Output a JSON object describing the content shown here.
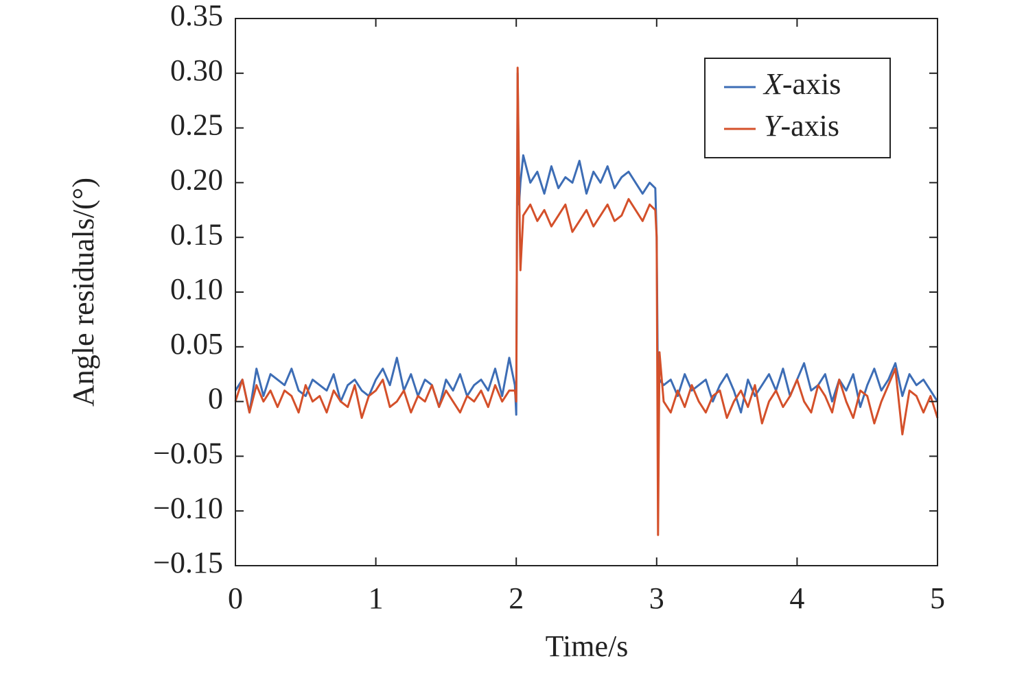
{
  "chart_data": {
    "type": "line",
    "x_label": "Time/s",
    "y_label": "Angle residuals/(°)",
    "xlim": [
      0,
      5
    ],
    "ylim": [
      -0.15,
      0.35
    ],
    "xticks": [
      0,
      1,
      2,
      3,
      4,
      5
    ],
    "yticks": [
      {
        "value": -0.15,
        "label": "−0.15"
      },
      {
        "value": -0.1,
        "label": "−0.10"
      },
      {
        "value": -0.05,
        "label": "−0.05"
      },
      0,
      {
        "value": 0.05,
        "label": "0.05"
      },
      {
        "value": 0.1,
        "label": "0.10"
      },
      {
        "value": 0.15,
        "label": "0.15"
      },
      {
        "value": 0.2,
        "label": "0.20"
      },
      {
        "value": 0.25,
        "label": "0.25"
      },
      {
        "value": 0.3,
        "label": "0.30"
      },
      {
        "value": 0.35,
        "label": "0.35"
      }
    ],
    "legend": "upper right",
    "x": [
      0,
      0.05,
      0.1,
      0.15,
      0.2,
      0.25,
      0.3,
      0.35,
      0.4,
      0.45,
      0.5,
      0.55,
      0.6,
      0.65,
      0.7,
      0.75,
      0.8,
      0.85,
      0.9,
      0.95,
      1,
      1.05,
      1.1,
      1.15,
      1.2,
      1.25,
      1.3,
      1.35,
      1.4,
      1.45,
      1.5,
      1.55,
      1.6,
      1.65,
      1.7,
      1.75,
      1.8,
      1.85,
      1.9,
      1.95,
      1.99,
      2,
      2.01,
      2.02,
      2.03,
      2.05,
      2.1,
      2.15,
      2.2,
      2.25,
      2.3,
      2.35,
      2.4,
      2.45,
      2.5,
      2.55,
      2.6,
      2.65,
      2.7,
      2.75,
      2.8,
      2.85,
      2.9,
      2.95,
      2.99,
      3,
      3.01,
      3.02,
      3.05,
      3.1,
      3.15,
      3.2,
      3.25,
      3.3,
      3.35,
      3.4,
      3.45,
      3.5,
      3.55,
      3.6,
      3.65,
      3.7,
      3.75,
      3.8,
      3.85,
      3.9,
      3.95,
      4,
      4.05,
      4.1,
      4.15,
      4.2,
      4.25,
      4.3,
      4.35,
      4.4,
      4.45,
      4.5,
      4.55,
      4.6,
      4.65,
      4.7,
      4.75,
      4.8,
      4.85,
      4.9,
      4.95,
      5
    ],
    "series": [
      {
        "name": "X-axis",
        "color": "#3d6db5",
        "values": [
          0.01,
          0.02,
          -0.01,
          0.03,
          0.005,
          0.025,
          0.02,
          0.015,
          0.03,
          0.01,
          0.005,
          0.02,
          0.015,
          0.01,
          0.025,
          0.0,
          0.015,
          0.02,
          0.01,
          0.005,
          0.02,
          0.03,
          0.015,
          0.04,
          0.01,
          0.025,
          0.005,
          0.02,
          0.015,
          -0.005,
          0.02,
          0.01,
          0.025,
          0.005,
          0.015,
          0.02,
          0.01,
          0.03,
          0.005,
          0.04,
          0.015,
          -0.012,
          0.3,
          0.18,
          0.2,
          0.225,
          0.2,
          0.21,
          0.19,
          0.215,
          0.195,
          0.205,
          0.2,
          0.22,
          0.19,
          0.21,
          0.2,
          0.215,
          0.195,
          0.205,
          0.21,
          0.2,
          0.19,
          0.2,
          0.195,
          0.15,
          0.0,
          0.02,
          0.015,
          0.02,
          0.005,
          0.025,
          0.01,
          0.015,
          0.02,
          0.0,
          0.015,
          0.025,
          0.01,
          -0.01,
          0.02,
          0.005,
          0.015,
          0.025,
          0.01,
          0.03,
          0.005,
          0.02,
          0.035,
          0.01,
          0.015,
          0.025,
          0.0,
          0.02,
          0.01,
          0.025,
          -0.005,
          0.015,
          0.03,
          0.01,
          0.02,
          0.035,
          0.005,
          0.025,
          0.015,
          0.02,
          0.01,
          0.0
        ]
      },
      {
        "name": "Y-axis",
        "color": "#d4502a",
        "values": [
          0.0,
          0.02,
          -0.01,
          0.015,
          0.0,
          0.01,
          -0.005,
          0.01,
          0.005,
          -0.01,
          0.015,
          0.0,
          0.005,
          -0.01,
          0.01,
          0.0,
          -0.005,
          0.015,
          -0.015,
          0.005,
          0.01,
          0.02,
          -0.005,
          0.0,
          0.01,
          -0.01,
          0.005,
          0.0,
          0.015,
          -0.005,
          0.01,
          0.0,
          -0.01,
          0.005,
          0.0,
          0.01,
          -0.005,
          0.015,
          0.0,
          0.01,
          0.01,
          0.0,
          0.305,
          0.2,
          0.12,
          0.17,
          0.18,
          0.165,
          0.175,
          0.16,
          0.17,
          0.18,
          0.155,
          0.165,
          0.175,
          0.16,
          0.17,
          0.18,
          0.165,
          0.17,
          0.185,
          0.175,
          0.165,
          0.18,
          0.175,
          0.15,
          -0.122,
          0.045,
          0.0,
          -0.01,
          0.01,
          -0.005,
          0.015,
          0.0,
          -0.01,
          0.005,
          0.01,
          -0.015,
          0.0,
          0.01,
          -0.005,
          0.015,
          -0.02,
          0.0,
          0.01,
          -0.005,
          0.005,
          0.02,
          0.0,
          -0.01,
          0.015,
          0.005,
          -0.01,
          0.02,
          0.0,
          -0.015,
          0.01,
          0.005,
          -0.02,
          0.0,
          0.015,
          0.03,
          -0.03,
          0.01,
          0.005,
          -0.01,
          0.005,
          -0.015
        ]
      }
    ]
  }
}
